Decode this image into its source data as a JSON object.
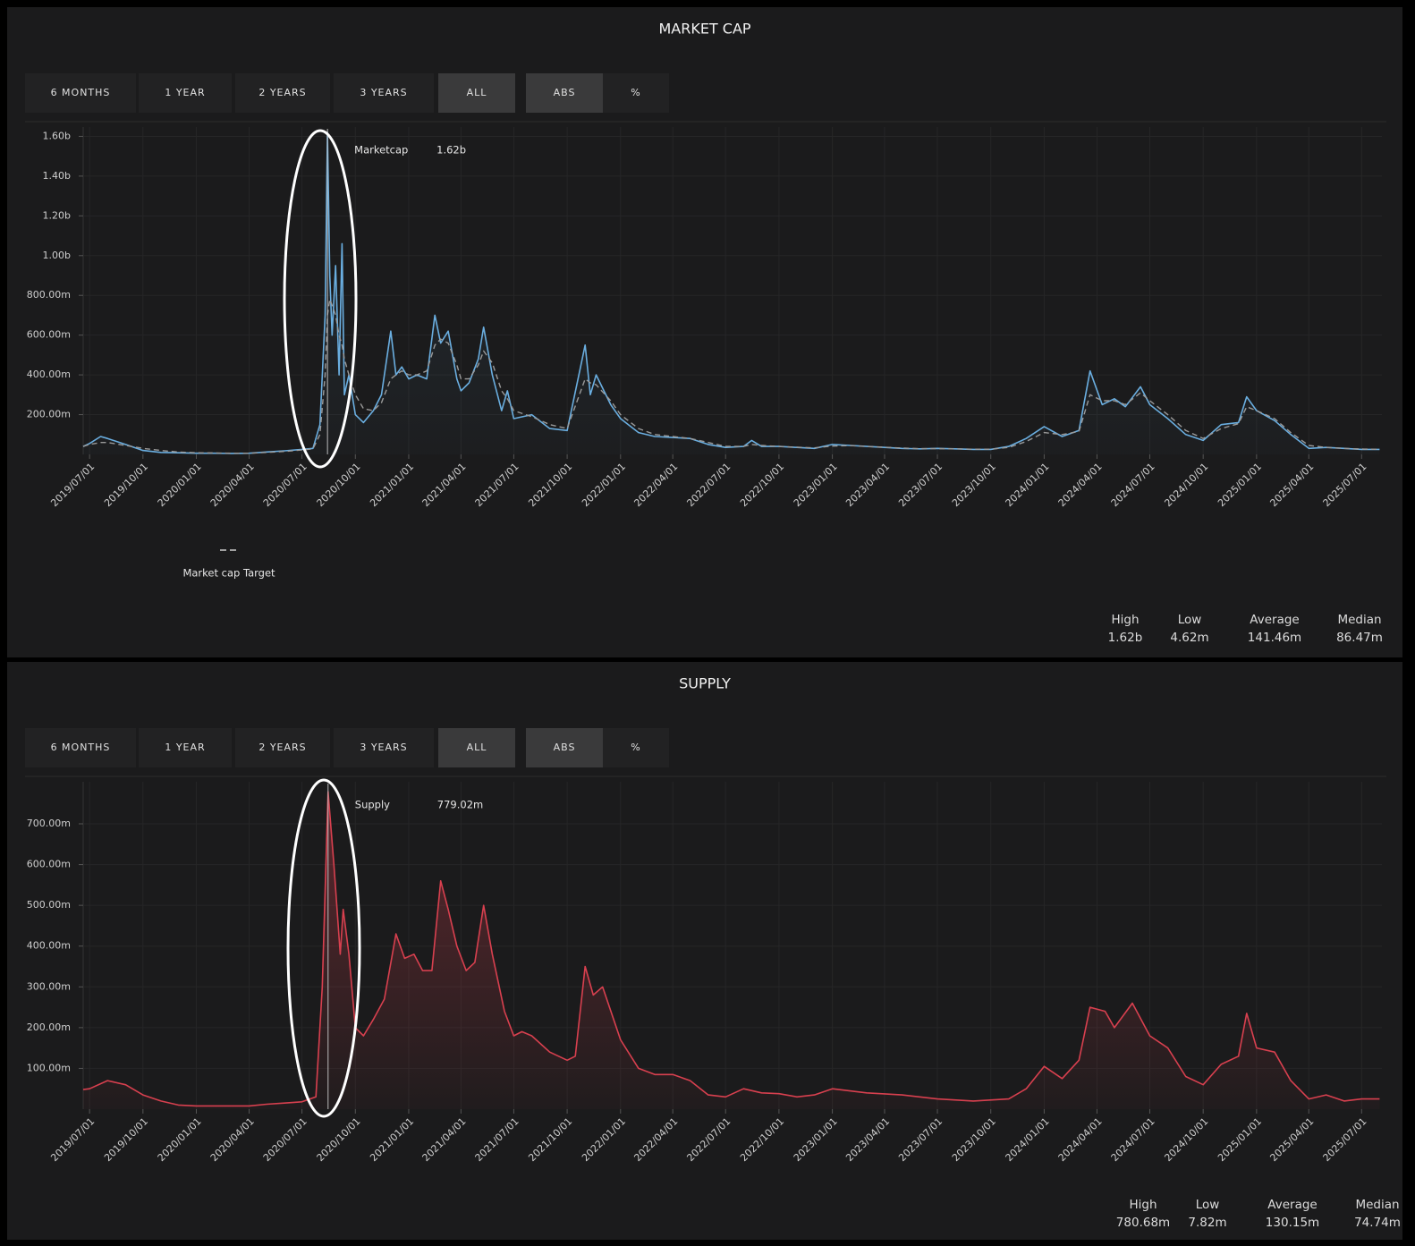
{
  "chart_data": [
    {
      "type": "line",
      "title": "MARKET CAP",
      "buttons": [
        "6 MONTHS",
        "1 YEAR",
        "2 YEARS",
        "3 YEARS",
        "ALL",
        "ABS",
        "%"
      ],
      "active_buttons": [
        4,
        5
      ],
      "x": [
        "2019/06/20",
        "2019/07/01",
        "2019/07/20",
        "2019/08/01",
        "2019/09/01",
        "2019/10/01",
        "2019/11/01",
        "2019/12/01",
        "2020/01/01",
        "2020/02/01",
        "2020/03/01",
        "2020/04/01",
        "2020/05/01",
        "2020/06/01",
        "2020/07/01",
        "2020/07/20",
        "2020/08/01",
        "2020/08/10",
        "2020/08/14",
        "2020/08/18",
        "2020/08/22",
        "2020/08/28",
        "2020/09/03",
        "2020/09/08",
        "2020/09/12",
        "2020/09/20",
        "2020/10/01",
        "2020/10/15",
        "2020/11/01",
        "2020/11/15",
        "2020/12/01",
        "2020/12/10",
        "2020/12/20",
        "2021/01/01",
        "2021/01/15",
        "2021/02/01",
        "2021/02/15",
        "2021/02/25",
        "2021/03/10",
        "2021/03/25",
        "2021/04/01",
        "2021/04/15",
        "2021/05/01",
        "2021/05/10",
        "2021/05/25",
        "2021/06/10",
        "2021/06/20",
        "2021/07/01",
        "2021/08/01",
        "2021/09/01",
        "2021/10/01",
        "2021/11/01",
        "2021/11/10",
        "2021/11/20",
        "2021/12/15",
        "2022/01/01",
        "2022/02/01",
        "2022/03/01",
        "2022/04/01",
        "2022/05/01",
        "2022/06/01",
        "2022/07/01",
        "2022/08/01",
        "2022/08/15",
        "2022/09/01",
        "2022/10/01",
        "2022/11/01",
        "2022/12/01",
        "2023/01/01",
        "2023/02/01",
        "2023/03/01",
        "2023/04/01",
        "2023/05/01",
        "2023/06/01",
        "2023/07/01",
        "2023/08/01",
        "2023/09/01",
        "2023/10/01",
        "2023/11/01",
        "2023/12/01",
        "2024/01/01",
        "2024/02/01",
        "2024/03/01",
        "2024/03/20",
        "2024/04/10",
        "2024/05/01",
        "2024/05/20",
        "2024/06/15",
        "2024/07/01",
        "2024/08/01",
        "2024/09/01",
        "2024/10/01",
        "2024/11/01",
        "2024/12/01",
        "2024/12/15",
        "2025/01/01",
        "2025/02/01",
        "2025/03/01",
        "2025/04/01",
        "2025/05/01",
        "2025/06/01",
        "2025/07/01",
        "2025/08/01"
      ],
      "series": [
        {
          "name": "Marketcap",
          "color": "#6aaee0",
          "values": [
            40,
            55,
            90,
            80,
            50,
            20,
            10,
            8,
            6,
            6,
            5,
            6,
            12,
            18,
            25,
            30,
            150,
            700,
            1620,
            900,
            600,
            950,
            400,
            1060,
            300,
            400,
            200,
            160,
            220,
            300,
            620,
            400,
            440,
            380,
            400,
            380,
            700,
            560,
            620,
            380,
            320,
            360,
            480,
            640,
            400,
            220,
            320,
            180,
            200,
            130,
            120,
            550,
            300,
            400,
            250,
            180,
            110,
            90,
            85,
            80,
            50,
            35,
            40,
            70,
            40,
            40,
            35,
            30,
            50,
            45,
            40,
            35,
            30,
            28,
            30,
            28,
            25,
            25,
            40,
            80,
            140,
            90,
            120,
            420,
            250,
            280,
            240,
            340,
            250,
            180,
            100,
            70,
            150,
            160,
            290,
            220,
            170,
            100,
            30,
            35,
            30,
            25,
            25
          ]
        },
        {
          "name": "Market cap Target",
          "color": "#9a9a9a",
          "dashed": true,
          "values": [
            40,
            50,
            60,
            60,
            45,
            30,
            20,
            12,
            8,
            7,
            6,
            6,
            10,
            15,
            22,
            28,
            100,
            400,
            700,
            780,
            750,
            700,
            600,
            550,
            480,
            400,
            300,
            230,
            220,
            260,
            380,
            400,
            420,
            400,
            400,
            420,
            550,
            580,
            560,
            450,
            380,
            380,
            450,
            520,
            460,
            320,
            280,
            220,
            190,
            150,
            130,
            380,
            360,
            350,
            270,
            200,
            130,
            100,
            90,
            80,
            60,
            40,
            40,
            50,
            45,
            40,
            36,
            33,
            42,
            44,
            40,
            36,
            32,
            29,
            29,
            28,
            26,
            26,
            35,
            65,
            110,
            100,
            115,
            300,
            270,
            270,
            250,
            310,
            270,
            200,
            120,
            80,
            130,
            155,
            240,
            220,
            180,
            110,
            45,
            35,
            30,
            27,
            25
          ]
        }
      ],
      "tooltip": {
        "x": "2020/08/14",
        "label": "1.62b"
      },
      "xlim": [
        "2019/06/20",
        "2025/08/05"
      ],
      "xticks": [
        "2019/07/01",
        "2019/10/01",
        "2020/01/01",
        "2020/04/01",
        "2020/07/01",
        "2020/10/01",
        "2021/01/01",
        "2021/04/01",
        "2021/07/01",
        "2021/10/01",
        "2022/01/01",
        "2022/04/01",
        "2022/07/01",
        "2022/10/01",
        "2023/01/01",
        "2023/04/01",
        "2023/07/01",
        "2023/10/01",
        "2024/01/01",
        "2024/04/01",
        "2024/07/01",
        "2024/10/01",
        "2025/01/01",
        "2025/04/01",
        "2025/07/01"
      ],
      "ylim": [
        0,
        1620
      ],
      "yticks": [
        {
          "value": 200,
          "label": "200.00m"
        },
        {
          "value": 400,
          "label": "400.00m"
        },
        {
          "value": 600,
          "label": "600.00m"
        },
        {
          "value": 800,
          "label": "800.00m"
        },
        {
          "value": 1000,
          "label": "1.00b"
        },
        {
          "value": 1200,
          "label": "1.20b"
        },
        {
          "value": 1400,
          "label": "1.40b"
        },
        {
          "value": 1600,
          "label": "1.60b"
        }
      ],
      "grid": true,
      "stats": [
        {
          "label": "High",
          "value": "1.62b"
        },
        {
          "label": "Low",
          "value": "4.62m"
        },
        {
          "label": "Average",
          "value": "141.46m"
        },
        {
          "label": "Median",
          "value": "86.47m"
        }
      ]
    },
    {
      "type": "area",
      "title": "SUPPLY",
      "buttons": [
        "6 MONTHS",
        "1 YEAR",
        "2 YEARS",
        "3 YEARS",
        "ALL",
        "ABS",
        "%"
      ],
      "active_buttons": [
        4,
        5
      ],
      "x": [
        "2019/06/20",
        "2019/07/01",
        "2019/08/01",
        "2019/09/01",
        "2019/10/01",
        "2019/11/01",
        "2019/12/01",
        "2020/01/01",
        "2020/03/01",
        "2020/04/01",
        "2020/05/01",
        "2020/06/01",
        "2020/07/01",
        "2020/07/25",
        "2020/08/05",
        "2020/08/15",
        "2020/08/25",
        "2020/09/05",
        "2020/09/10",
        "2020/09/20",
        "2020/10/01",
        "2020/10/15",
        "2020/11/01",
        "2020/11/20",
        "2020/12/10",
        "2020/12/25",
        "2021/01/10",
        "2021/01/25",
        "2021/02/10",
        "2021/02/25",
        "2021/03/10",
        "2021/03/25",
        "2021/04/10",
        "2021/04/25",
        "2021/05/10",
        "2021/05/25",
        "2021/06/15",
        "2021/07/01",
        "2021/07/15",
        "2021/08/01",
        "2021/09/01",
        "2021/10/01",
        "2021/10/15",
        "2021/11/01",
        "2021/11/15",
        "2021/12/01",
        "2022/01/01",
        "2022/02/01",
        "2022/03/01",
        "2022/04/01",
        "2022/05/01",
        "2022/06/01",
        "2022/07/01",
        "2022/08/01",
        "2022/09/01",
        "2022/10/01",
        "2022/11/01",
        "2022/12/01",
        "2023/01/01",
        "2023/03/01",
        "2023/05/01",
        "2023/07/01",
        "2023/09/01",
        "2023/11/01",
        "2023/12/01",
        "2024/01/01",
        "2024/02/01",
        "2024/03/01",
        "2024/03/20",
        "2024/04/15",
        "2024/05/01",
        "2024/06/01",
        "2024/07/01",
        "2024/08/01",
        "2024/09/01",
        "2024/10/01",
        "2024/11/01",
        "2024/12/01",
        "2024/12/15",
        "2025/01/01",
        "2025/02/01",
        "2025/03/01",
        "2025/04/01",
        "2025/05/01",
        "2025/06/01",
        "2025/07/01",
        "2025/08/01"
      ],
      "series": [
        {
          "name": "Supply",
          "color": "#d8404f",
          "values": [
            48,
            50,
            70,
            60,
            35,
            20,
            10,
            8,
            8,
            8,
            12,
            15,
            18,
            30,
            300,
            779,
            600,
            380,
            490,
            380,
            200,
            180,
            220,
            270,
            430,
            370,
            380,
            340,
            340,
            560,
            490,
            400,
            340,
            360,
            500,
            380,
            240,
            180,
            190,
            180,
            140,
            120,
            130,
            350,
            280,
            300,
            170,
            100,
            85,
            85,
            70,
            35,
            30,
            50,
            40,
            38,
            30,
            35,
            50,
            40,
            35,
            25,
            20,
            25,
            50,
            105,
            75,
            120,
            250,
            240,
            200,
            260,
            180,
            150,
            80,
            60,
            110,
            130,
            235,
            150,
            140,
            70,
            25,
            35,
            20,
            25,
            25
          ]
        }
      ],
      "tooltip": {
        "x": "2020/08/15",
        "label": "779.02m"
      },
      "xlim": [
        "2019/06/20",
        "2025/08/05"
      ],
      "xticks": [
        "2019/07/01",
        "2019/10/01",
        "2020/01/01",
        "2020/04/01",
        "2020/07/01",
        "2020/10/01",
        "2021/01/01",
        "2021/04/01",
        "2021/07/01",
        "2021/10/01",
        "2022/01/01",
        "2022/04/01",
        "2022/07/01",
        "2022/10/01",
        "2023/01/01",
        "2023/04/01",
        "2023/07/01",
        "2023/10/01",
        "2024/01/01",
        "2024/04/01",
        "2024/07/01",
        "2024/10/01",
        "2025/01/01",
        "2025/04/01",
        "2025/07/01"
      ],
      "ylim": [
        0,
        790
      ],
      "yticks": [
        {
          "value": 100,
          "label": "100.00m"
        },
        {
          "value": 200,
          "label": "200.00m"
        },
        {
          "value": 300,
          "label": "300.00m"
        },
        {
          "value": 400,
          "label": "400.00m"
        },
        {
          "value": 500,
          "label": "500.00m"
        },
        {
          "value": 600,
          "label": "600.00m"
        },
        {
          "value": 700,
          "label": "700.00m"
        }
      ],
      "grid": true,
      "stats": [
        {
          "label": "High",
          "value": "780.68m"
        },
        {
          "label": "Low",
          "value": "7.82m"
        },
        {
          "label": "Average",
          "value": "130.15m"
        },
        {
          "label": "Median",
          "value": "74.74m"
        }
      ]
    }
  ]
}
